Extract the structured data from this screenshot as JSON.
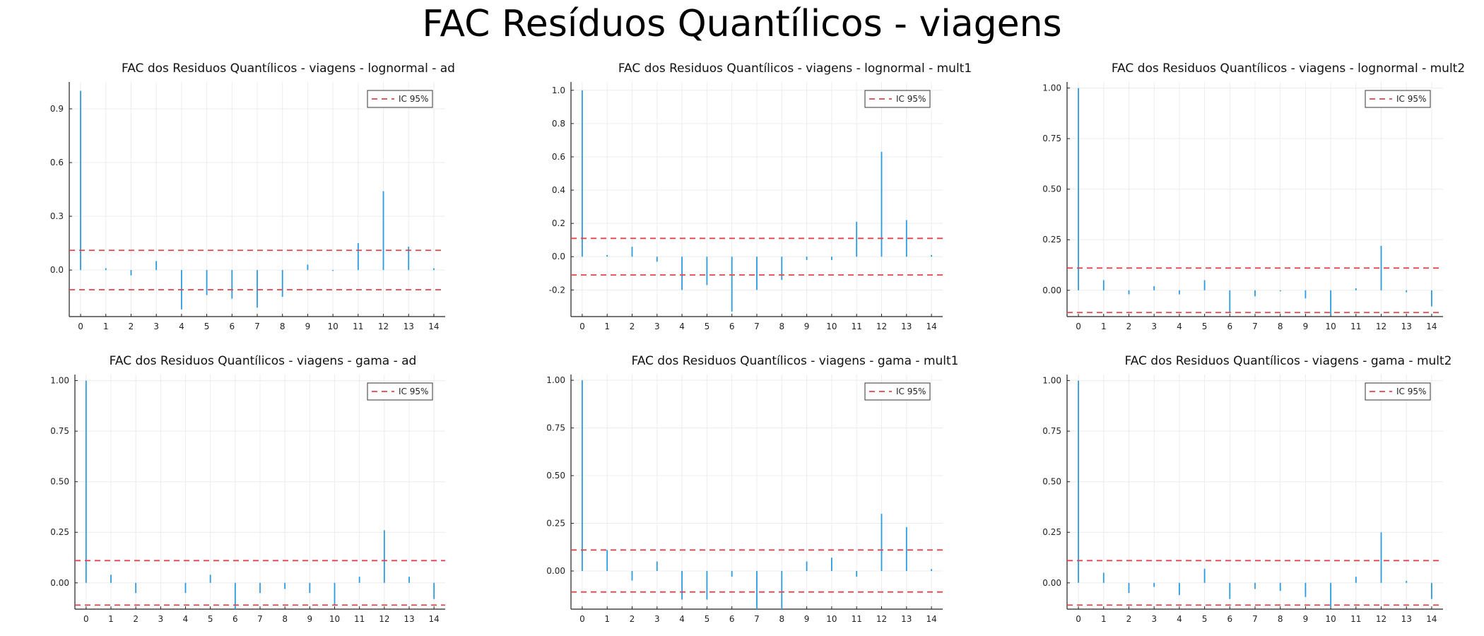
{
  "title": "FAC Resíduos Quantílicos - viagens",
  "colors": {
    "bar": "#2a9be0",
    "ci": "#e0464b",
    "axis": "#222222",
    "grid": "#ececec"
  },
  "chart_data": [
    {
      "type": "bar",
      "title": "FAC dos Residuos Quantílicos - viagens - lognormal - ad",
      "x": [
        0,
        1,
        2,
        3,
        4,
        5,
        6,
        7,
        8,
        9,
        10,
        11,
        12,
        13,
        14
      ],
      "series": [
        {
          "values": [
            1.0,
            0.01,
            -0.03,
            0.05,
            -0.22,
            -0.14,
            -0.16,
            -0.21,
            -0.15,
            0.03,
            -0.005,
            0.15,
            0.44,
            0.13,
            0.01
          ]
        }
      ],
      "ci": 0.11,
      "legend": "IC 95%",
      "legend_position": "top-right",
      "ylim": [
        -0.26,
        1.05
      ],
      "yticks": [
        0.0,
        0.3,
        0.6,
        0.9
      ],
      "ytick_labels": [
        "0.0",
        "0.3",
        "0.6",
        "0.9"
      ],
      "grid": true
    },
    {
      "type": "bar",
      "title": "FAC dos Residuos Quantílicos - viagens - lognormal - mult1",
      "x": [
        0,
        1,
        2,
        3,
        4,
        5,
        6,
        7,
        8,
        9,
        10,
        11,
        12,
        13,
        14
      ],
      "series": [
        {
          "values": [
            1.0,
            0.01,
            0.06,
            -0.03,
            -0.2,
            -0.17,
            -0.33,
            -0.2,
            -0.14,
            -0.02,
            -0.02,
            0.21,
            0.63,
            0.22,
            0.01
          ]
        }
      ],
      "ci": 0.11,
      "legend": "IC 95%",
      "legend_position": "top-right",
      "ylim": [
        -0.36,
        1.05
      ],
      "yticks": [
        -0.2,
        0.0,
        0.2,
        0.4,
        0.6,
        0.8,
        1.0
      ],
      "ytick_labels": [
        "-0.2",
        "0.0",
        "0.2",
        "0.4",
        "0.6",
        "0.8",
        "1.0"
      ],
      "grid": true
    },
    {
      "type": "bar",
      "title": "FAC dos Residuos Quantílicos - viagens - lognormal - mult2",
      "x": [
        0,
        1,
        2,
        3,
        4,
        5,
        6,
        7,
        8,
        9,
        10,
        11,
        12,
        13,
        14
      ],
      "series": [
        {
          "values": [
            1.0,
            0.05,
            -0.02,
            0.02,
            -0.02,
            0.05,
            -0.11,
            -0.03,
            -0.005,
            -0.04,
            -0.12,
            0.01,
            0.22,
            -0.01,
            -0.08
          ]
        }
      ],
      "ci": 0.11,
      "legend": "IC 95%",
      "legend_position": "top-right",
      "ylim": [
        -0.13,
        1.03
      ],
      "yticks": [
        0.0,
        0.25,
        0.5,
        0.75,
        1.0
      ],
      "ytick_labels": [
        "0.00",
        "0.25",
        "0.50",
        "0.75",
        "1.00"
      ],
      "grid": true
    },
    {
      "type": "bar",
      "title": "FAC dos Residuos Quantílicos - viagens - gama - ad",
      "x": [
        0,
        1,
        2,
        3,
        4,
        5,
        6,
        7,
        8,
        9,
        10,
        11,
        12,
        13,
        14
      ],
      "series": [
        {
          "values": [
            1.0,
            0.04,
            -0.05,
            0.0,
            -0.05,
            0.04,
            -0.13,
            -0.05,
            -0.03,
            -0.05,
            -0.11,
            0.03,
            0.26,
            0.03,
            -0.08
          ]
        }
      ],
      "ci": 0.11,
      "legend": "IC 95%",
      "legend_position": "top-right",
      "ylim": [
        -0.13,
        1.03
      ],
      "yticks": [
        0.0,
        0.25,
        0.5,
        0.75,
        1.0
      ],
      "ytick_labels": [
        "0.00",
        "0.25",
        "0.50",
        "0.75",
        "1.00"
      ],
      "grid": true
    },
    {
      "type": "bar",
      "title": "FAC dos Residuos Quantílicos - viagens - gama - mult1",
      "x": [
        0,
        1,
        2,
        3,
        4,
        5,
        6,
        7,
        8,
        9,
        10,
        11,
        12,
        13,
        14
      ],
      "series": [
        {
          "values": [
            1.0,
            0.11,
            -0.05,
            0.05,
            -0.15,
            -0.15,
            -0.03,
            -0.2,
            -0.2,
            0.05,
            0.07,
            -0.03,
            0.3,
            0.23,
            0.01
          ]
        }
      ],
      "ci": 0.11,
      "legend": "IC 95%",
      "legend_position": "top-right",
      "ylim": [
        -0.2,
        1.03
      ],
      "yticks": [
        0.0,
        0.25,
        0.5,
        0.75,
        1.0
      ],
      "ytick_labels": [
        "0.00",
        "0.25",
        "0.50",
        "0.75",
        "1.00"
      ],
      "grid": true
    },
    {
      "type": "bar",
      "title": "FAC dos Residuos Quantílicos - viagens - gama - mult2",
      "x": [
        0,
        1,
        2,
        3,
        4,
        5,
        6,
        7,
        8,
        9,
        10,
        11,
        12,
        13,
        14
      ],
      "series": [
        {
          "values": [
            1.0,
            0.05,
            -0.05,
            -0.02,
            -0.06,
            0.07,
            -0.08,
            -0.03,
            -0.04,
            -0.07,
            -0.12,
            0.03,
            0.25,
            0.01,
            -0.08
          ]
        }
      ],
      "ci": 0.11,
      "legend": "IC 95%",
      "legend_position": "top-right",
      "ylim": [
        -0.13,
        1.03
      ],
      "yticks": [
        0.0,
        0.25,
        0.5,
        0.75,
        1.0
      ],
      "ytick_labels": [
        "0.00",
        "0.25",
        "0.50",
        "0.75",
        "1.00"
      ],
      "grid": true
    }
  ]
}
